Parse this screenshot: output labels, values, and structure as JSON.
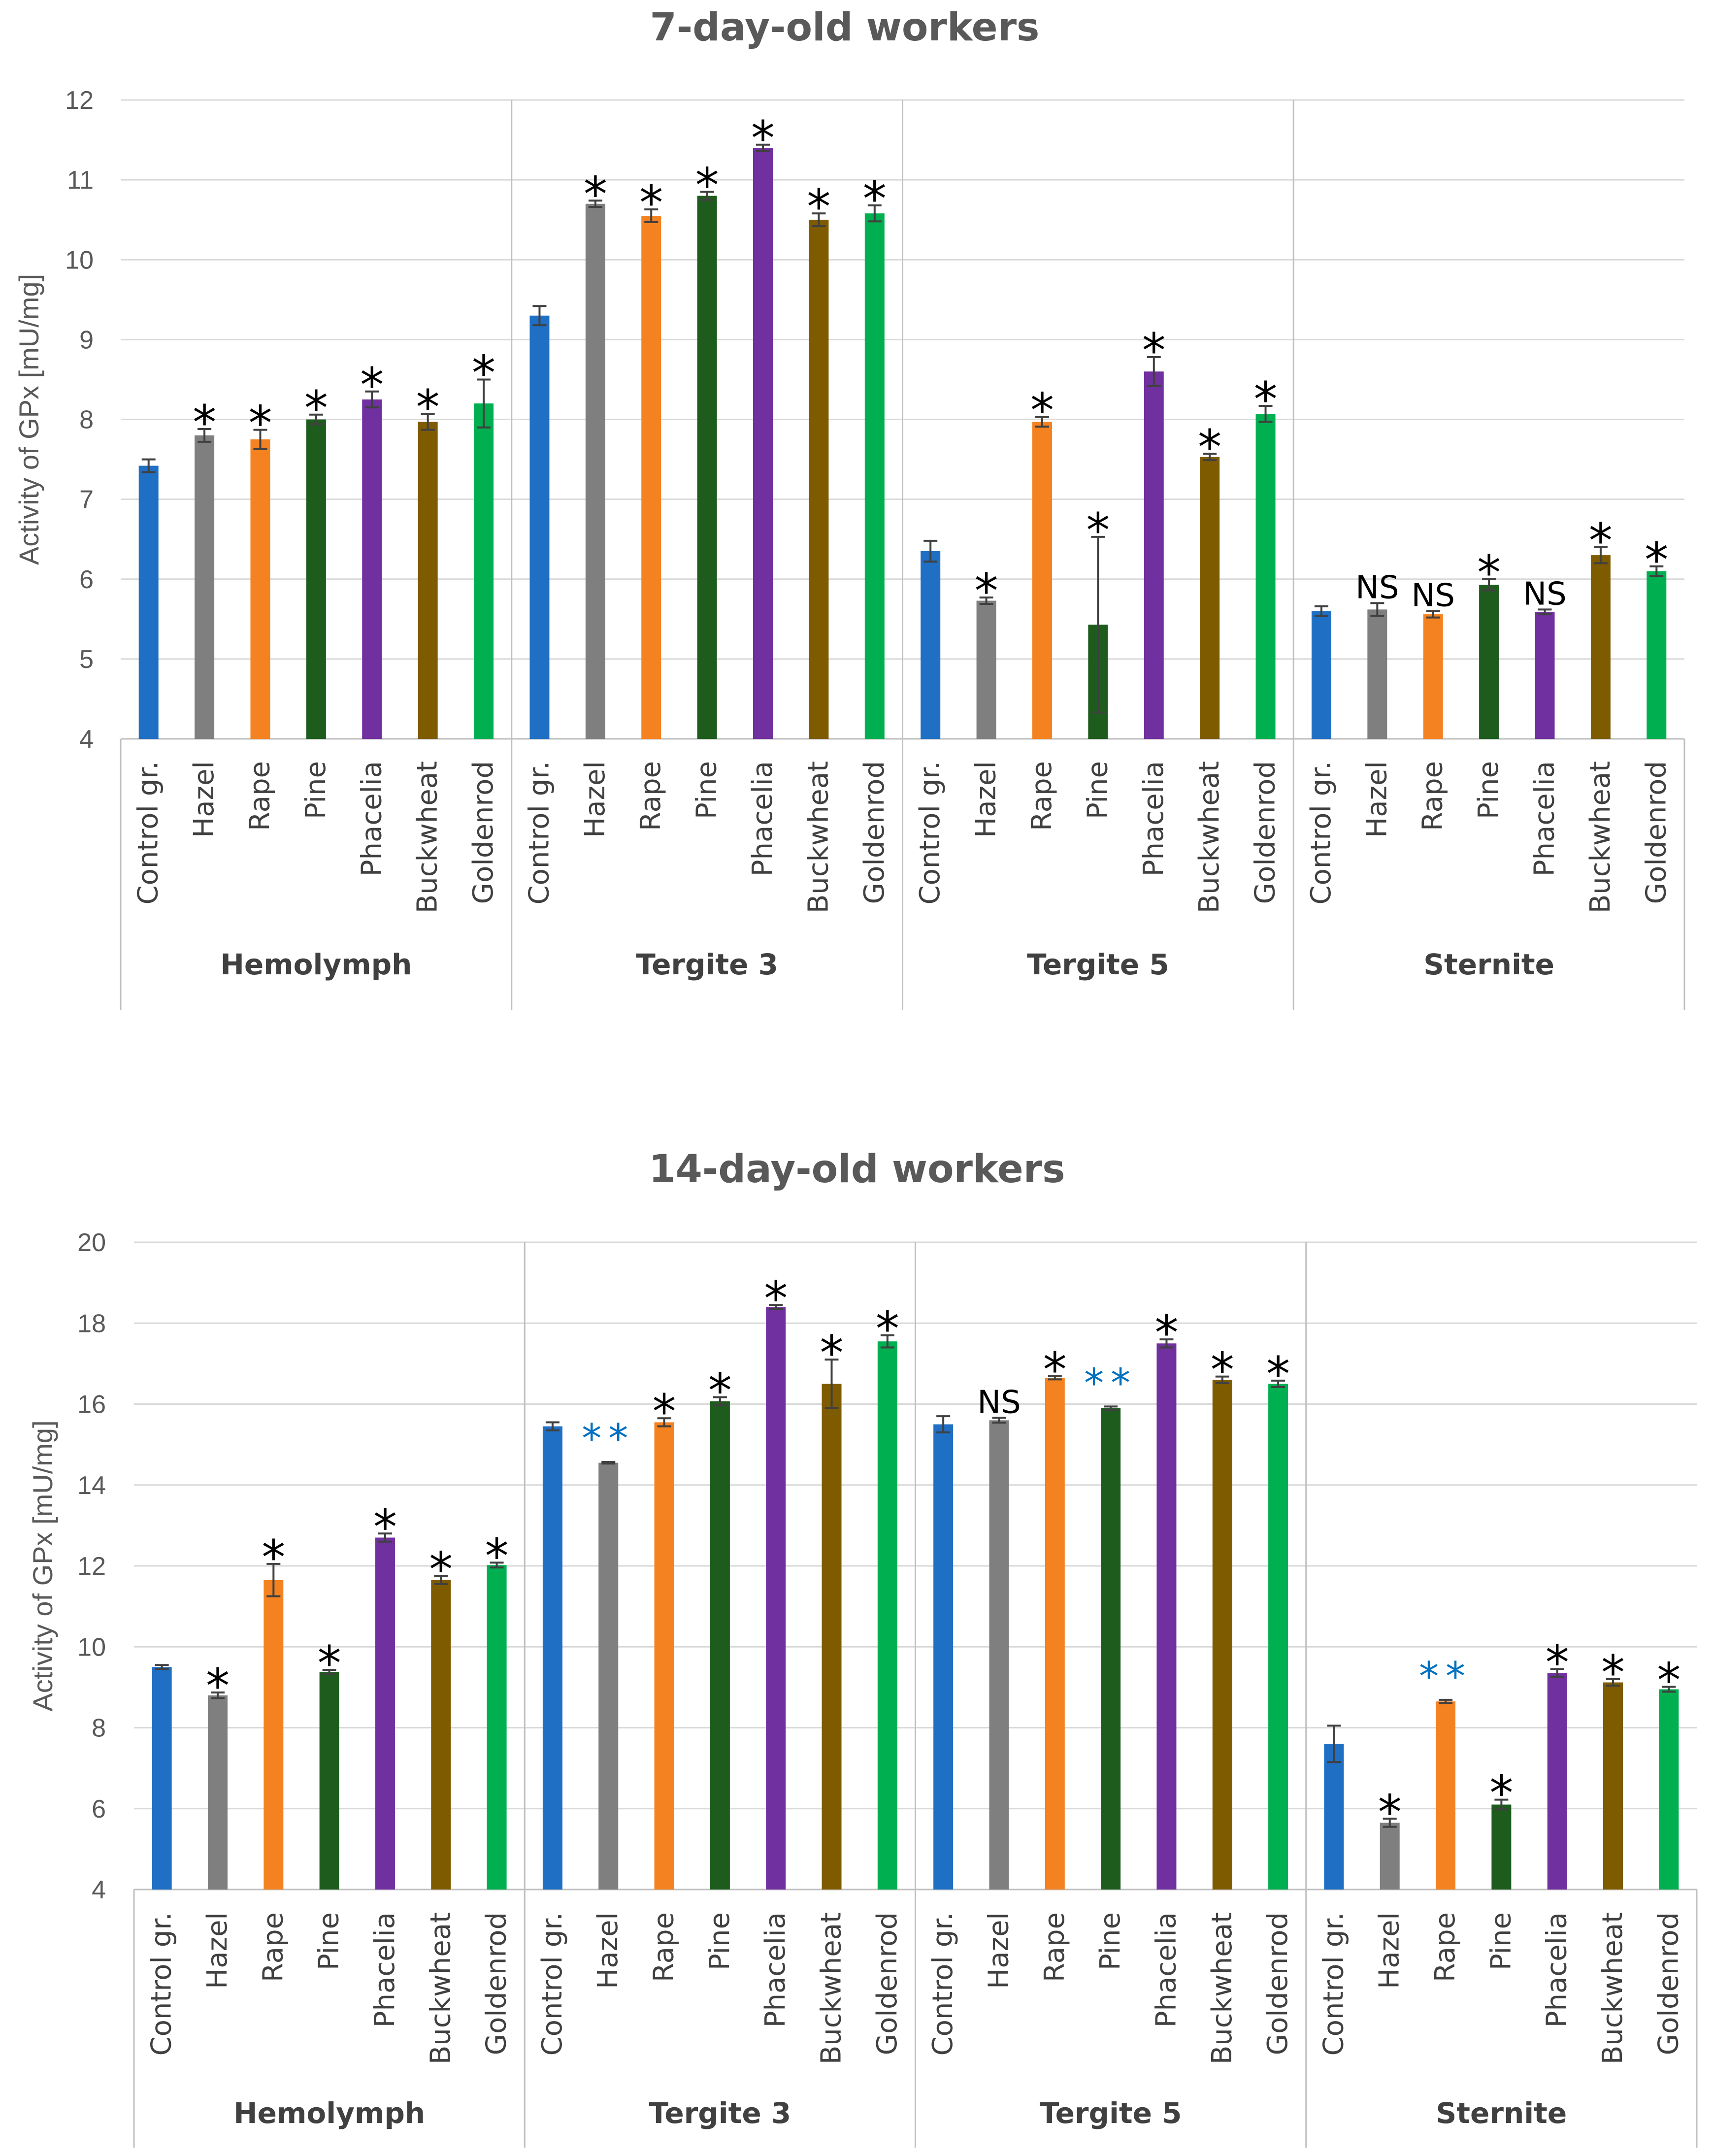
{
  "colors": {
    "Control gr.": "#1f6fc5",
    "Hazel": "#7f7f7f",
    "Rape": "#f58220",
    "Pine": "#1e5c1e",
    "Phacelia": "#7030a0",
    "Buckwheat": "#7f5b00",
    "Goldenrod": "#00b050",
    "double_star": "#0070c0"
  },
  "chart_data": [
    {
      "type": "bar",
      "title": "7-day-old workers",
      "ylabel": "Activity of GPx [mU/mg]",
      "ylim": [
        4,
        12
      ],
      "yticks": [
        4,
        5,
        6,
        7,
        8,
        9,
        10,
        11,
        12
      ],
      "grid": true,
      "groups": [
        {
          "name": "Hemolymph",
          "categories": [
            "Control gr.",
            "Hazel",
            "Rape",
            "Pine",
            "Phacelia",
            "Buckwheat",
            "Goldenrod"
          ],
          "values": [
            7.42,
            7.8,
            7.75,
            8.0,
            8.25,
            7.97,
            8.2
          ],
          "errors": [
            0.08,
            0.08,
            0.12,
            0.06,
            0.1,
            0.1,
            0.3
          ],
          "significance": [
            "",
            "*",
            "*",
            "*",
            "*",
            "*",
            "*"
          ]
        },
        {
          "name": "Tergite 3",
          "categories": [
            "Control gr.",
            "Hazel",
            "Rape",
            "Pine",
            "Phacelia",
            "Buckwheat",
            "Goldenrod"
          ],
          "values": [
            9.3,
            10.7,
            10.55,
            10.8,
            11.4,
            10.5,
            10.58
          ],
          "errors": [
            0.12,
            0.04,
            0.08,
            0.05,
            0.04,
            0.08,
            0.1
          ],
          "significance": [
            "",
            "*",
            "*",
            "*",
            "*",
            "*",
            "*"
          ]
        },
        {
          "name": "Tergite 5",
          "categories": [
            "Control gr.",
            "Hazel",
            "Rape",
            "Pine",
            "Phacelia",
            "Buckwheat",
            "Goldenrod"
          ],
          "values": [
            6.35,
            5.73,
            7.97,
            5.43,
            8.6,
            7.53,
            8.07
          ],
          "errors": [
            0.13,
            0.04,
            0.06,
            1.1,
            0.18,
            0.04,
            0.1
          ],
          "significance": [
            "",
            "*",
            "*",
            "*",
            "*",
            "*",
            "*"
          ]
        },
        {
          "name": "Sternite",
          "categories": [
            "Control gr.",
            "Hazel",
            "Rape",
            "Pine",
            "Phacelia",
            "Buckwheat",
            "Goldenrod"
          ],
          "values": [
            5.6,
            5.62,
            5.56,
            5.93,
            5.59,
            6.3,
            6.1
          ],
          "errors": [
            0.06,
            0.08,
            0.04,
            0.07,
            0.03,
            0.1,
            0.06
          ],
          "significance": [
            "",
            "NS",
            "NS",
            "*",
            "NS",
            "*",
            "*"
          ]
        }
      ]
    },
    {
      "type": "bar",
      "title": "14-day-old workers",
      "ylabel": "Activity of GPx [mU/mg]",
      "ylim": [
        4,
        20
      ],
      "yticks": [
        4,
        6,
        8,
        10,
        12,
        14,
        16,
        18,
        20
      ],
      "grid": true,
      "groups": [
        {
          "name": "Hemolymph",
          "categories": [
            "Control gr.",
            "Hazel",
            "Rape",
            "Pine",
            "Phacelia",
            "Buckwheat",
            "Goldenrod"
          ],
          "values": [
            9.5,
            8.8,
            11.65,
            9.38,
            12.7,
            11.65,
            12.02
          ],
          "errors": [
            0.05,
            0.07,
            0.4,
            0.05,
            0.1,
            0.1,
            0.06
          ],
          "significance": [
            "",
            "*",
            "*",
            "*",
            "*",
            "*",
            "*"
          ]
        },
        {
          "name": "Tergite 3",
          "categories": [
            "Control gr.",
            "Hazel",
            "Rape",
            "Pine",
            "Phacelia",
            "Buckwheat",
            "Goldenrod"
          ],
          "values": [
            15.45,
            14.55,
            15.55,
            16.07,
            18.4,
            16.5,
            17.55
          ],
          "errors": [
            0.1,
            0.02,
            0.1,
            0.1,
            0.05,
            0.6,
            0.15
          ],
          "significance": [
            "",
            "**",
            "*",
            "*",
            "*",
            "*",
            "*"
          ]
        },
        {
          "name": "Tergite 5",
          "categories": [
            "Control gr.",
            "Hazel",
            "Rape",
            "Pine",
            "Phacelia",
            "Buckwheat",
            "Goldenrod"
          ],
          "values": [
            15.5,
            15.6,
            16.65,
            15.9,
            17.5,
            16.6,
            16.5
          ],
          "errors": [
            0.2,
            0.06,
            0.04,
            0.04,
            0.1,
            0.08,
            0.08
          ],
          "significance": [
            "",
            "NS",
            "*",
            "**",
            "*",
            "*",
            "*"
          ]
        },
        {
          "name": "Sternite",
          "categories": [
            "Control gr.",
            "Hazel",
            "Rape",
            "Pine",
            "Phacelia",
            "Buckwheat",
            "Goldenrod"
          ],
          "values": [
            7.6,
            5.65,
            8.65,
            6.1,
            9.35,
            9.12,
            8.95
          ],
          "errors": [
            0.45,
            0.1,
            0.04,
            0.12,
            0.1,
            0.08,
            0.06
          ],
          "significance": [
            "",
            "*",
            "**",
            "*",
            "*",
            "*",
            "*"
          ]
        }
      ]
    }
  ]
}
